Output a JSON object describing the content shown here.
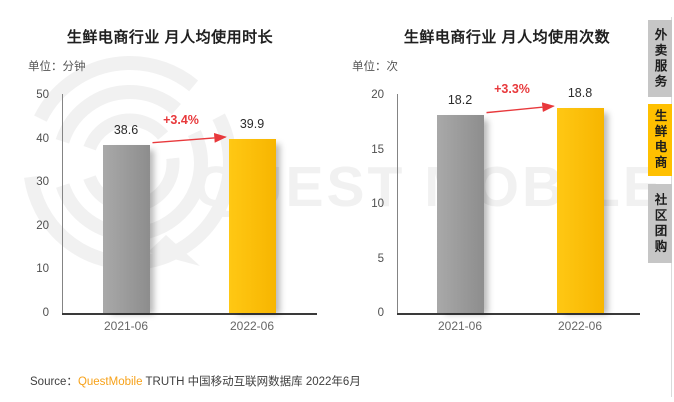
{
  "chart_data": [
    {
      "type": "bar",
      "title": "生鲜电商行业 月人均使用时长",
      "unit_label": "单位：分钟",
      "categories": [
        "2021-06",
        "2022-06"
      ],
      "values": [
        38.6,
        39.9
      ],
      "growth_label": "+3.4%",
      "y_ticks": [
        50,
        40,
        30,
        20,
        10,
        0
      ],
      "ylim": [
        0,
        50
      ],
      "grid": false,
      "legend": "none",
      "bar_gradients": [
        [
          "#a9a9a9",
          "#8d8d8d"
        ],
        [
          "#ffc814",
          "#f7b500"
        ]
      ]
    },
    {
      "type": "bar",
      "title": "生鲜电商行业 月人均使用次数",
      "unit_label": "单位：次",
      "categories": [
        "2021-06",
        "2022-06"
      ],
      "values": [
        18.2,
        18.8
      ],
      "growth_label": "+3.3%",
      "y_ticks": [
        20,
        15,
        10,
        5,
        0
      ],
      "ylim": [
        0,
        20
      ],
      "grid": false,
      "legend": "none",
      "bar_gradients": [
        [
          "#a9a9a9",
          "#8d8d8d"
        ],
        [
          "#ffc814",
          "#f7b500"
        ]
      ]
    }
  ],
  "sidebar": {
    "tabs": [
      {
        "label": "外卖服务",
        "active": false
      },
      {
        "label": "生鲜电商",
        "active": true
      },
      {
        "label": "社区团购",
        "active": false
      }
    ]
  },
  "source": {
    "prefix": "Source：",
    "brand": "QuestMobile",
    "suffix": " TRUTH 中国移动互联网数据库 2022年6月"
  },
  "watermark": {
    "text": "QUEST MOBILE"
  },
  "colors": {
    "bar_gray": "#9a9a9a",
    "bar_yellow": "#ffc107",
    "growth_red": "#e8393c",
    "brand_orange": "#f7a21a",
    "tab_gray": "#c6c6c6",
    "tab_yellow": "#ffc000",
    "watermark_gray": "#f1f1f1",
    "axis_dark": "#3a3a3a"
  }
}
